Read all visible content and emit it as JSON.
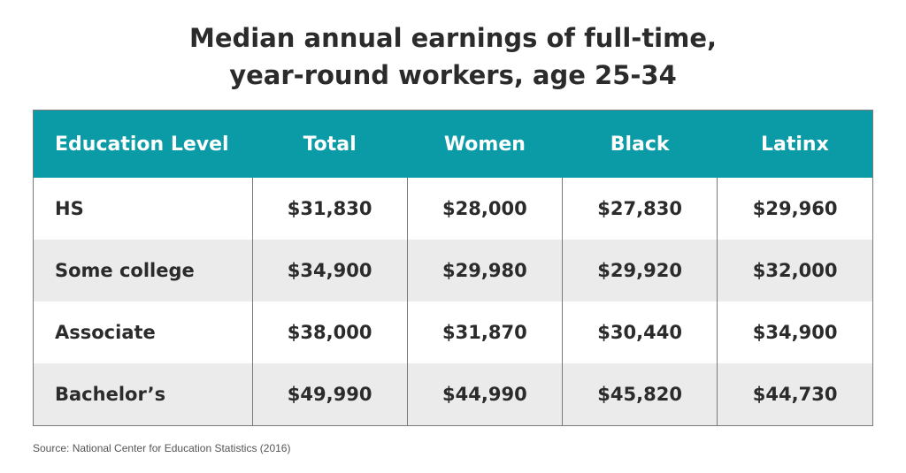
{
  "chart_data": {
    "type": "table",
    "title_line1": "Median annual earnings of full-time,",
    "title_line2": "year-round workers, age 25-34",
    "columns": [
      "Education Level",
      "Total",
      "Women",
      "Black",
      "Latinx"
    ],
    "rows": [
      [
        "HS",
        "$31,830",
        "$28,000",
        "$27,830",
        "$29,960"
      ],
      [
        "Some college",
        "$34,900",
        "$29,980",
        "$29,920",
        "$32,000"
      ],
      [
        "Associate",
        "$38,000",
        "$31,870",
        "$30,440",
        "$34,900"
      ],
      [
        "Bachelor’s",
        "$49,990",
        "$44,990",
        "$45,820",
        "$44,730"
      ]
    ],
    "source": "Source: National Center for Education Statistics (2016)",
    "header_color": "#0a9ba6",
    "stripe_color": "#ebebeb"
  }
}
